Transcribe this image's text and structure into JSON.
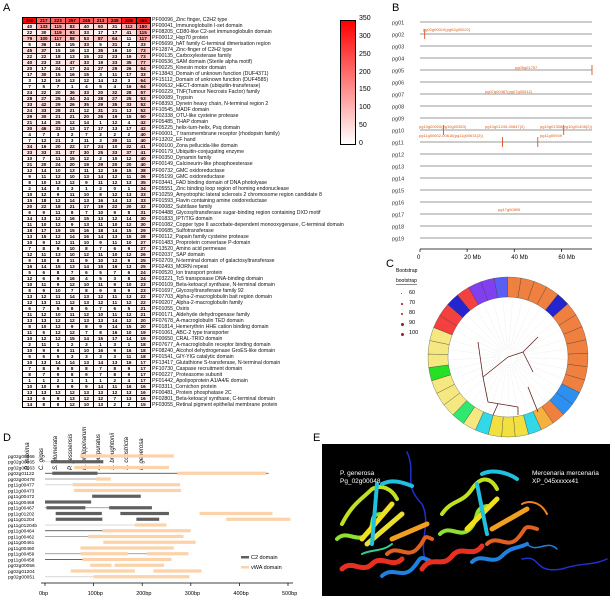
{
  "panels": {
    "a": "A",
    "b": "B",
    "c": "C",
    "d": "D",
    "e": "E"
  },
  "heatmap": {
    "species": [
      "P. maxima",
      "C. gigas",
      "S. glomerata",
      "P. yessoensis",
      "R. philippinarum",
      "A. purpuratus",
      "S. broughtonii",
      "S. constricta",
      "P. generosa"
    ],
    "colorbar": {
      "min": 0,
      "max": 350,
      "ticks": [
        "350",
        "300",
        "250",
        "200",
        "150",
        "100",
        "50",
        "0"
      ],
      "low_color": "#ffffff",
      "high_color": "#ff0000"
    },
    "domains": [
      "PF00096_Zinc finger, C2H2 type",
      "PF00041_Immunoglobulin I-set domain",
      "PF08205_CD80-like C2-set immunoglobulin domain",
      "PF00012_Hsp70 protein",
      "PF05699_hAT family C-terminal dimerisation region",
      "PF12874_Zinc-finger of C2H2 type",
      "PF00135_Carboxylesterase family",
      "PF00536_SAM domain (Sterile alpha motif)",
      "PF00225_Kinesin motor domain",
      "PF13843_Domain of unknown function (DUF4371)",
      "PF15112_Domain of unknown function (DUF4585)",
      "PF00632_HECT-domain (ubiquitin-transferase)",
      "PF00229_TNF(Tumour Necrosis Factor) family",
      "PF00089_Trypsin",
      "PF08393_Dynein heavy chain, N-terminal region 2",
      "PF10545_MADF domain",
      "PF02338_OTU-like cysteine protease",
      "PF05485_THAP domain",
      "PF05225_helix-turn-helix, Psq domain",
      "PF00001_7 transmembrane receptor (rhodopsin family)",
      "PF13202_EF hand",
      "PF00100_Zona pellucida-like domain",
      "PF00179_Ubiquitin-conjugating enzyme",
      "PF00350_Dynamin family",
      "PF00149_Calcineurin-like phosphoesterase",
      "PF00732_GMC oxidoreductase",
      "PF05199_GMC oxidoreductase",
      "PF03441_FAD binding domain of DNA photolyase",
      "PF05551_Zinc binding loop region of homing endonuclease",
      "PF10259_Amyotrophic lateral sclerosis 2 chromosome region candidate 8",
      "PF01593_Flavin containing amine oxidoreductase",
      "PF00082_Subtilase family",
      "PF04488_Glycosyltransferase sugar-binding region containing DXD motif",
      "PF01833_IPT/TIG domain",
      "PF01082_Copper type II ascorbate-dependent monooxygenase, C-terminal domain",
      "PF00685_Sulfotransferase",
      "PF00112_Papain family cysteine protease",
      "PF01483_Proprotein convertase P-domain",
      "PF13520_Amino acid permease",
      "PF02037_SAP domain",
      "PF02709_N-terminal domain of galactosyltransferase",
      "PF02493_MORN repeat",
      "PF00520_Ion transport protein",
      "PF03221_Tc5 transposase DNA-binding domain",
      "PF00109_Beta-ketoacyl synthase, N-terminal domain",
      "PF01697_Glycosyltransferase family 92",
      "PF07703_Alpha-2-macroglobulin bait region domain",
      "PF00207_Alpha-2-macroglobulin family",
      "PF01055_Osiris",
      "PF00171_Aldehyde dehydrogenase family",
      "PF07678_A-macroglobulin TED domain",
      "PF01814_Hemerythrin HHE cation binding domain",
      "PF01061_ABC-2 type transporter",
      "PF00650_CRAL-TRIO domain",
      "PF07677_A-macroglobulin receptor binding domain",
      "PF08240_Alcohol dehydrogenase GroES-like domain",
      "PF01541_GIY-YIG catalytic domain",
      "PF13417_Glutathione S-transferase, N-terminal domain",
      "PF10730_Caspase recruitment domain",
      "PF00227_Proteasome subunit",
      "PF01442_Apolipoprotein A1/A4/E domain",
      "PF03311_Cornichon protein",
      "PF00481_Protein phosphatase 2C",
      "PF02801_Beta-ketoacyl synthase, C-terminal domain",
      "PF03055_Retinal pigment epithelial membrane protein"
    ],
    "values": [
      [
        350,
        217,
        223,
        257,
        245,
        213,
        245,
        329,
        355
      ],
      [
        40,
        133,
        115,
        83,
        40,
        60,
        31,
        112,
        180
      ],
      [
        22,
        30,
        119,
        93,
        33,
        17,
        17,
        41,
        115
      ],
      [
        79,
        100,
        117,
        88,
        53,
        87,
        64,
        11,
        117
      ],
      [
        5,
        36,
        16,
        15,
        33,
        5,
        31,
        2,
        33
      ],
      [
        45,
        37,
        15,
        16,
        13,
        35,
        16,
        10,
        73
      ],
      [
        22,
        22,
        18,
        13,
        15,
        22,
        23,
        19,
        73
      ],
      [
        40,
        23,
        33,
        47,
        33,
        19,
        33,
        35,
        77
      ],
      [
        20,
        17,
        24,
        17,
        24,
        27,
        29,
        26,
        64
      ],
      [
        17,
        30,
        15,
        16,
        15,
        3,
        11,
        17,
        33
      ],
      [
        3,
        12,
        16,
        13,
        12,
        14,
        12,
        3,
        64
      ],
      [
        7,
        5,
        7,
        1,
        4,
        5,
        4,
        16,
        64
      ],
      [
        24,
        22,
        20,
        36,
        33,
        20,
        32,
        28,
        57
      ],
      [
        28,
        27,
        25,
        34,
        24,
        28,
        27,
        25,
        53
      ],
      [
        33,
        42,
        29,
        26,
        35,
        29,
        35,
        33,
        52
      ],
      [
        24,
        33,
        28,
        21,
        12,
        31,
        21,
        13,
        52
      ],
      [
        29,
        30,
        21,
        21,
        20,
        26,
        19,
        15,
        50
      ],
      [
        21,
        14,
        25,
        12,
        14,
        1,
        12,
        4,
        42
      ],
      [
        30,
        46,
        33,
        13,
        17,
        17,
        13,
        17,
        42
      ],
      [
        4,
        7,
        3,
        2,
        7,
        2,
        2,
        2,
        40
      ],
      [
        7,
        12,
        21,
        3,
        11,
        3,
        30,
        11,
        40
      ],
      [
        34,
        16,
        20,
        22,
        17,
        24,
        10,
        22,
        41
      ],
      [
        33,
        33,
        31,
        37,
        30,
        25,
        33,
        37,
        41
      ],
      [
        10,
        7,
        11,
        15,
        12,
        2,
        10,
        12,
        40
      ],
      [
        21,
        20,
        24,
        20,
        19,
        29,
        20,
        20,
        40
      ],
      [
        12,
        14,
        10,
        13,
        11,
        12,
        16,
        15,
        38
      ],
      [
        9,
        11,
        12,
        10,
        13,
        14,
        12,
        11,
        36
      ],
      [
        8,
        10,
        13,
        12,
        9,
        11,
        12,
        13,
        35
      ],
      [
        2,
        14,
        0,
        3,
        1,
        2,
        0,
        1,
        34
      ],
      [
        10,
        12,
        9,
        11,
        10,
        8,
        12,
        13,
        33
      ],
      [
        15,
        18,
        12,
        14,
        13,
        16,
        14,
        13,
        33
      ],
      [
        20,
        22,
        18,
        21,
        17,
        19,
        22,
        20,
        32
      ],
      [
        6,
        9,
        11,
        8,
        7,
        10,
        9,
        8,
        31
      ],
      [
        14,
        13,
        12,
        16,
        15,
        13,
        12,
        14,
        30
      ],
      [
        11,
        10,
        12,
        9,
        13,
        11,
        10,
        12,
        30
      ],
      [
        18,
        17,
        19,
        15,
        16,
        18,
        14,
        15,
        29
      ],
      [
        13,
        15,
        12,
        14,
        16,
        14,
        13,
        15,
        28
      ],
      [
        10,
        9,
        12,
        11,
        10,
        9,
        11,
        10,
        27
      ],
      [
        7,
        8,
        9,
        10,
        8,
        7,
        6,
        9,
        27
      ],
      [
        12,
        11,
        13,
        10,
        12,
        11,
        10,
        12,
        26
      ],
      [
        9,
        10,
        8,
        11,
        9,
        10,
        12,
        9,
        25
      ],
      [
        16,
        14,
        15,
        13,
        14,
        15,
        16,
        13,
        25
      ],
      [
        5,
        6,
        8,
        7,
        6,
        5,
        7,
        6,
        24
      ],
      [
        12,
        6,
        9,
        16,
        4,
        5,
        3,
        8,
        24
      ],
      [
        10,
        11,
        9,
        12,
        10,
        11,
        9,
        10,
        23
      ],
      [
        8,
        9,
        10,
        7,
        8,
        9,
        8,
        9,
        23
      ],
      [
        13,
        12,
        11,
        14,
        13,
        12,
        11,
        13,
        22
      ],
      [
        12,
        13,
        11,
        12,
        13,
        12,
        11,
        12,
        22
      ],
      [
        6,
        7,
        5,
        8,
        6,
        7,
        6,
        5,
        21
      ],
      [
        11,
        12,
        10,
        11,
        12,
        10,
        11,
        12,
        21
      ],
      [
        13,
        13,
        12,
        12,
        13,
        13,
        14,
        12,
        20
      ],
      [
        8,
        10,
        12,
        9,
        8,
        9,
        14,
        15,
        20
      ],
      [
        11,
        5,
        12,
        12,
        7,
        8,
        16,
        10,
        19
      ],
      [
        10,
        12,
        12,
        15,
        14,
        15,
        17,
        14,
        19
      ],
      [
        2,
        11,
        1,
        2,
        3,
        1,
        3,
        1,
        18
      ],
      [
        10,
        9,
        9,
        11,
        10,
        16,
        9,
        16,
        18
      ],
      [
        5,
        5,
        5,
        3,
        3,
        3,
        3,
        11,
        18
      ],
      [
        10,
        13,
        14,
        14,
        13,
        14,
        13,
        16,
        17
      ],
      [
        7,
        8,
        9,
        8,
        8,
        7,
        8,
        9,
        17
      ],
      [
        8,
        7,
        9,
        8,
        9,
        7,
        8,
        9,
        17
      ],
      [
        1,
        1,
        2,
        1,
        1,
        1,
        2,
        4,
        17
      ],
      [
        10,
        10,
        9,
        9,
        9,
        14,
        11,
        16,
        16
      ],
      [
        13,
        13,
        12,
        12,
        13,
        13,
        12,
        13,
        16
      ],
      [
        13,
        6,
        9,
        13,
        12,
        12,
        7,
        13,
        16
      ],
      [
        14,
        8,
        8,
        12,
        10,
        13,
        2,
        2,
        15
      ]
    ]
  },
  "chromosomes": {
    "names": [
      "pg01",
      "pg02",
      "pg03",
      "pg04",
      "pg05",
      "pg06",
      "pg07",
      "pg08",
      "pg09",
      "pg10",
      "pg11",
      "pg12",
      "pg13",
      "pg14",
      "pg15",
      "pg16",
      "pg17",
      "pg18",
      "pg19"
    ],
    "axis_ticks": [
      {
        "label": "0",
        "mb": 0
      },
      {
        "label": "20 Mb",
        "mb": 20
      },
      {
        "label": "40 Mb",
        "mb": 40
      },
      {
        "label": "60 Mb",
        "mb": 60
      }
    ],
    "axis_max_mb": 73,
    "markers": [
      {
        "chr": 2,
        "mb": 2,
        "label": "pg02g00010(pg02g00022)"
      },
      {
        "chr": 5,
        "mb": 73,
        "label": "pg05g01757"
      },
      {
        "chr": 7,
        "mb": null,
        "label": "pg07g00487(pg07g00512)"
      },
      {
        "chr": 10,
        "mb": 10,
        "label": "pg10g00020(pg10g00363)"
      },
      {
        "chr": 10,
        "mb": null,
        "label": "pg10g01245-00847(2)"
      },
      {
        "chr": 10,
        "mb": 61,
        "label": "pg10g01308(pg10g01408(2))"
      },
      {
        "chr": 11,
        "mb": 35,
        "label": "pg11g00602-00616(pg11g00631(2))"
      },
      {
        "chr": 11,
        "mb": 50,
        "label": "pg11g00949"
      },
      {
        "chr": 17,
        "mb": null,
        "label": "pg17g00895"
      }
    ]
  },
  "tree": {
    "legend_title": "Bootstrap",
    "legend_subtitle": "bootstrap",
    "bootstrap": [
      "60",
      "70",
      "80",
      "90",
      "100"
    ],
    "clade_colors": [
      "#5b5ef2",
      "#f08040",
      "#f08040",
      "#f08040",
      "#f08040",
      "#2525d0",
      "#f08040",
      "#f08040",
      "#f08040",
      "#f08040",
      "#f08040",
      "#f08040",
      "#f08040",
      "#2d8ff0",
      "#2d8ff0",
      "#f08040",
      "#f5b040",
      "#30d8e8",
      "#f2e040",
      "#f2e040",
      "#f2e040",
      "#30d8e8",
      "#f5e880",
      "#30e870",
      "#f5e880",
      "#f5e880",
      "#f5e880",
      "#25e025",
      "#f5e880",
      "#f5e880",
      "#f5e880",
      "#f54040",
      "#f54040",
      "#2525d0",
      "#f54040",
      "#8040f0",
      "#8040f0"
    ]
  },
  "domains_plot": {
    "genes": [
      "pg02g00066",
      "pg02g00065",
      "pg02g00063",
      "pg02g01122",
      "pg02g00478",
      "pg11g00477",
      "pg11g00473",
      "pg11g00472",
      "pg11g00468",
      "pg11g00467",
      "pg11g01202",
      "pg11g01204",
      "pg11g01204b",
      "pg11g00464",
      "pg11g00462",
      "pg11g00461",
      "pg11g00460",
      "pg11g00459",
      "pg11g00458",
      "pg02g00056",
      "pg02g01204",
      "pg02g00051"
    ],
    "rows": [
      [
        null,
        [
          [
            "vWA",
            72,
            265
          ]
        ]
      ],
      [
        [
          0,
          100,
          "l"
        ],
        [
          [
            "C2",
            12,
            120
          ]
        ]
      ],
      [
        null,
        [
          [
            "vWA",
            60,
            255
          ]
        ]
      ],
      [
        [
          0,
          460,
          "d"
        ],
        [
          [
            "C2",
            15,
            108
          ],
          [
            "vWA",
            272,
            455
          ]
        ]
      ],
      [
        [
          0,
          105,
          "m"
        ],
        [
          [
            "vWA",
            105,
            135
          ]
        ]
      ],
      [
        [
          0,
          278,
          "l"
        ],
        [
          [
            "vWA",
            57,
            278
          ]
        ]
      ],
      [
        null,
        [
          [
            "vWA",
            60,
            280
          ]
        ]
      ],
      [
        null,
        [
          [
            "C2",
            97,
            197
          ]
        ]
      ],
      [
        null,
        [
          [
            "C2",
            0,
            95
          ]
        ]
      ],
      [
        [
          0,
          220,
          "m"
        ],
        [
          [
            "C2",
            3,
            83
          ],
          [
            "C2",
            132,
            220
          ]
        ]
      ],
      [
        null,
        [
          [
            "C2",
            22,
            117
          ],
          [
            "C2",
            155,
            255
          ],
          [
            "vWA",
            318,
            468
          ]
        ]
      ],
      [
        null,
        [
          [
            "C2",
            22,
            118
          ],
          [
            "C2",
            188,
            235
          ],
          [
            "vWA",
            373,
            505
          ]
        ]
      ],
      [
        [
          0,
          250,
          "l"
        ],
        [
          [
            "vWA",
            185,
            250
          ]
        ]
      ],
      [
        [
          0,
          118,
          "d"
        ],
        [
          [
            "vWA",
            118,
            300
          ]
        ]
      ],
      [
        [
          0,
          285,
          "m"
        ],
        [
          [
            "vWA",
            88,
            285
          ]
        ]
      ],
      [
        null,
        [
          [
            "vWA",
            120,
            310
          ]
        ]
      ],
      [
        null,
        [
          [
            "vWA",
            73,
            265
          ]
        ]
      ],
      [
        [
          0,
          295,
          "m"
        ],
        [
          [
            "vWA",
            73,
            170
          ],
          [
            "vWA",
            210,
            295
          ]
        ]
      ],
      [
        [
          0,
          260,
          "d"
        ],
        [
          [
            "vWA",
            77,
            175
          ],
          [
            "vWA",
            175,
            260
          ]
        ]
      ],
      [
        null,
        [
          [
            "vWA",
            93,
            137
          ],
          [
            "vWA",
            143,
            245
          ]
        ]
      ],
      [
        null,
        [
          [
            "vWA",
            53,
            185
          ],
          [
            "vWA",
            223,
            322
          ]
        ]
      ],
      [
        [
          0,
          297,
          "l"
        ],
        [
          [
            "vWA",
            100,
            297
          ]
        ]
      ]
    ],
    "axis": [
      "0bp",
      "100bp",
      "200bp",
      "300bp",
      "400bp",
      "500bp"
    ],
    "legend": {
      "c2": "C2 domain",
      "vwa": "vWA domain"
    },
    "colors": {
      "c2": "#606060",
      "vwa": "#fcd2a8"
    }
  },
  "structures": {
    "left": {
      "species": "P. generosa",
      "id": "Pg_02g00048"
    },
    "right": {
      "species": "Mercenaria mercenaria",
      "id": "XP_045xxxxx41"
    }
  }
}
